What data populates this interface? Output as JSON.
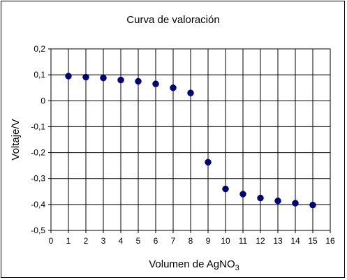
{
  "chart_data": {
    "type": "scatter",
    "title": "Curva de valoración",
    "xlabel": {
      "main": "Volumen de AgNO",
      "subscript": "3"
    },
    "ylabel": "Voltaje/V",
    "xlim": [
      0,
      16
    ],
    "ylim": [
      -0.5,
      0.2
    ],
    "x_ticks": [
      "0",
      "1",
      "2",
      "3",
      "4",
      "5",
      "6",
      "7",
      "8",
      "9",
      "10",
      "11",
      "12",
      "13",
      "14",
      "15",
      "16"
    ],
    "y_ticks": [
      "0,2",
      "0,1",
      "0",
      "-0,1",
      "-0,2",
      "-0,3",
      "-0,4",
      "-0,5"
    ],
    "grid": true,
    "legend": "none",
    "marker_color": "#000080",
    "series": [
      {
        "x": [
          1,
          2,
          3,
          4,
          5,
          6,
          7,
          8,
          9,
          10,
          11,
          12,
          13,
          14,
          15
        ],
        "y": [
          0.095,
          0.091,
          0.088,
          0.08,
          0.075,
          0.065,
          0.05,
          0.03,
          -0.237,
          -0.34,
          -0.36,
          -0.375,
          -0.386,
          -0.395,
          -0.402
        ]
      }
    ]
  }
}
